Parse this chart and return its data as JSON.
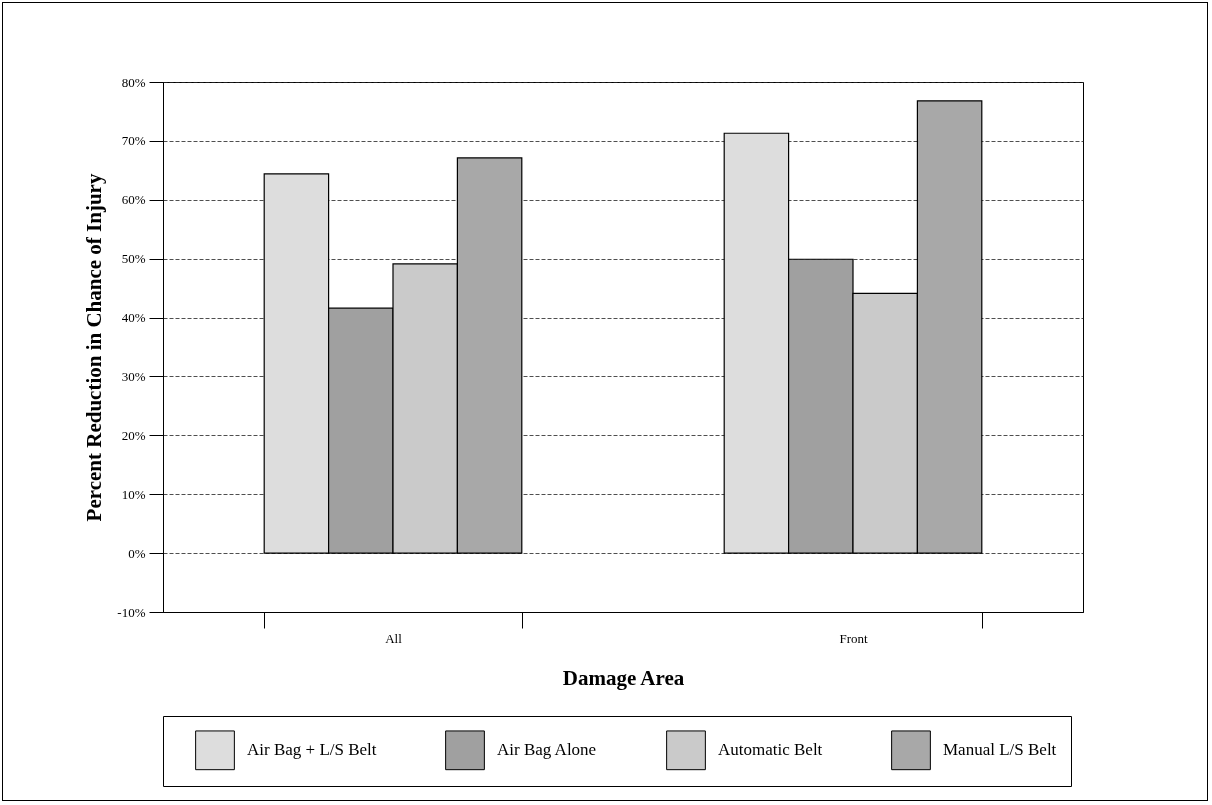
{
  "chart_data": {
    "type": "bar",
    "xlabel": "Damage Area",
    "ylabel": "Percent Reduction in Chance of Injury",
    "categories": [
      "All",
      "Front"
    ],
    "series": [
      {
        "name": "Air Bag + L/S Belt",
        "color": "#dddddd",
        "values": [
          64.4,
          71.3
        ]
      },
      {
        "name": "Air Bag Alone",
        "color": "#a0a0a0",
        "values": [
          41.6,
          49.9
        ]
      },
      {
        "name": "Automatic Belt",
        "color": "#cacaca",
        "values": [
          49.1,
          44.1
        ]
      },
      {
        "name": "Manual L/S Belt",
        "color": "#a8a8a8",
        "values": [
          67.1,
          76.8
        ]
      }
    ],
    "ylim": [
      -10,
      80
    ],
    "yticks": [
      {
        "value": -10,
        "label": "-10%"
      },
      {
        "value": 0,
        "label": "0%"
      },
      {
        "value": 10,
        "label": "10%"
      },
      {
        "value": 20,
        "label": "20%"
      },
      {
        "value": 30,
        "label": "30%"
      },
      {
        "value": 40,
        "label": "40%"
      },
      {
        "value": 50,
        "label": "50%"
      },
      {
        "value": 60,
        "label": "60%"
      },
      {
        "value": 70,
        "label": "70%"
      },
      {
        "value": 80,
        "label": "80%"
      }
    ],
    "grid": "y",
    "legend": "bottom"
  }
}
